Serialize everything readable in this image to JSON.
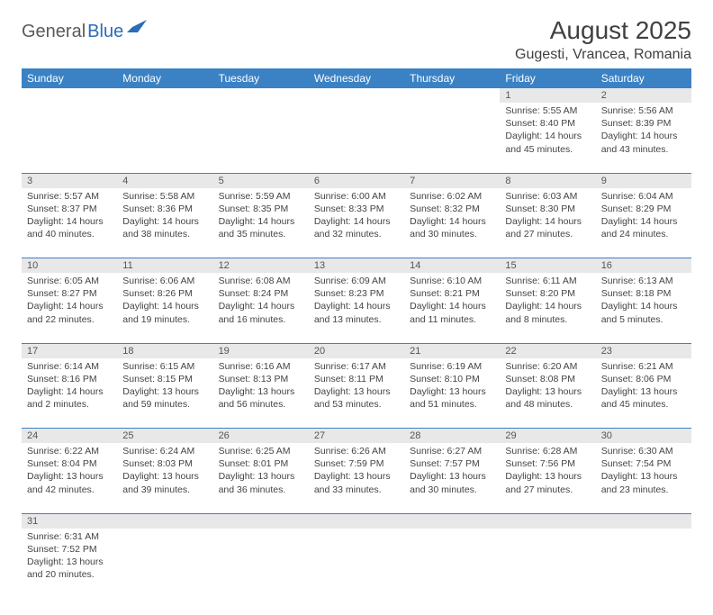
{
  "logo": {
    "text1": "General",
    "text2": "Blue"
  },
  "title": "August 2025",
  "location": "Gugesti, Vrancea, Romania",
  "colors": {
    "header_bg": "#3b82c4",
    "header_text": "#ffffff",
    "daynum_bg": "#e8e8e8",
    "border": "#3b82c4",
    "text": "#444444",
    "logo_gray": "#5a5a5a",
    "logo_blue": "#2a6db8"
  },
  "weekdays": [
    "Sunday",
    "Monday",
    "Tuesday",
    "Wednesday",
    "Thursday",
    "Friday",
    "Saturday"
  ],
  "weeks": [
    [
      null,
      null,
      null,
      null,
      null,
      {
        "n": "1",
        "sr": "Sunrise: 5:55 AM",
        "ss": "Sunset: 8:40 PM",
        "d1": "Daylight: 14 hours",
        "d2": "and 45 minutes."
      },
      {
        "n": "2",
        "sr": "Sunrise: 5:56 AM",
        "ss": "Sunset: 8:39 PM",
        "d1": "Daylight: 14 hours",
        "d2": "and 43 minutes."
      }
    ],
    [
      {
        "n": "3",
        "sr": "Sunrise: 5:57 AM",
        "ss": "Sunset: 8:37 PM",
        "d1": "Daylight: 14 hours",
        "d2": "and 40 minutes."
      },
      {
        "n": "4",
        "sr": "Sunrise: 5:58 AM",
        "ss": "Sunset: 8:36 PM",
        "d1": "Daylight: 14 hours",
        "d2": "and 38 minutes."
      },
      {
        "n": "5",
        "sr": "Sunrise: 5:59 AM",
        "ss": "Sunset: 8:35 PM",
        "d1": "Daylight: 14 hours",
        "d2": "and 35 minutes."
      },
      {
        "n": "6",
        "sr": "Sunrise: 6:00 AM",
        "ss": "Sunset: 8:33 PM",
        "d1": "Daylight: 14 hours",
        "d2": "and 32 minutes."
      },
      {
        "n": "7",
        "sr": "Sunrise: 6:02 AM",
        "ss": "Sunset: 8:32 PM",
        "d1": "Daylight: 14 hours",
        "d2": "and 30 minutes."
      },
      {
        "n": "8",
        "sr": "Sunrise: 6:03 AM",
        "ss": "Sunset: 8:30 PM",
        "d1": "Daylight: 14 hours",
        "d2": "and 27 minutes."
      },
      {
        "n": "9",
        "sr": "Sunrise: 6:04 AM",
        "ss": "Sunset: 8:29 PM",
        "d1": "Daylight: 14 hours",
        "d2": "and 24 minutes."
      }
    ],
    [
      {
        "n": "10",
        "sr": "Sunrise: 6:05 AM",
        "ss": "Sunset: 8:27 PM",
        "d1": "Daylight: 14 hours",
        "d2": "and 22 minutes."
      },
      {
        "n": "11",
        "sr": "Sunrise: 6:06 AM",
        "ss": "Sunset: 8:26 PM",
        "d1": "Daylight: 14 hours",
        "d2": "and 19 minutes."
      },
      {
        "n": "12",
        "sr": "Sunrise: 6:08 AM",
        "ss": "Sunset: 8:24 PM",
        "d1": "Daylight: 14 hours",
        "d2": "and 16 minutes."
      },
      {
        "n": "13",
        "sr": "Sunrise: 6:09 AM",
        "ss": "Sunset: 8:23 PM",
        "d1": "Daylight: 14 hours",
        "d2": "and 13 minutes."
      },
      {
        "n": "14",
        "sr": "Sunrise: 6:10 AM",
        "ss": "Sunset: 8:21 PM",
        "d1": "Daylight: 14 hours",
        "d2": "and 11 minutes."
      },
      {
        "n": "15",
        "sr": "Sunrise: 6:11 AM",
        "ss": "Sunset: 8:20 PM",
        "d1": "Daylight: 14 hours",
        "d2": "and 8 minutes."
      },
      {
        "n": "16",
        "sr": "Sunrise: 6:13 AM",
        "ss": "Sunset: 8:18 PM",
        "d1": "Daylight: 14 hours",
        "d2": "and 5 minutes."
      }
    ],
    [
      {
        "n": "17",
        "sr": "Sunrise: 6:14 AM",
        "ss": "Sunset: 8:16 PM",
        "d1": "Daylight: 14 hours",
        "d2": "and 2 minutes."
      },
      {
        "n": "18",
        "sr": "Sunrise: 6:15 AM",
        "ss": "Sunset: 8:15 PM",
        "d1": "Daylight: 13 hours",
        "d2": "and 59 minutes."
      },
      {
        "n": "19",
        "sr": "Sunrise: 6:16 AM",
        "ss": "Sunset: 8:13 PM",
        "d1": "Daylight: 13 hours",
        "d2": "and 56 minutes."
      },
      {
        "n": "20",
        "sr": "Sunrise: 6:17 AM",
        "ss": "Sunset: 8:11 PM",
        "d1": "Daylight: 13 hours",
        "d2": "and 53 minutes."
      },
      {
        "n": "21",
        "sr": "Sunrise: 6:19 AM",
        "ss": "Sunset: 8:10 PM",
        "d1": "Daylight: 13 hours",
        "d2": "and 51 minutes."
      },
      {
        "n": "22",
        "sr": "Sunrise: 6:20 AM",
        "ss": "Sunset: 8:08 PM",
        "d1": "Daylight: 13 hours",
        "d2": "and 48 minutes."
      },
      {
        "n": "23",
        "sr": "Sunrise: 6:21 AM",
        "ss": "Sunset: 8:06 PM",
        "d1": "Daylight: 13 hours",
        "d2": "and 45 minutes."
      }
    ],
    [
      {
        "n": "24",
        "sr": "Sunrise: 6:22 AM",
        "ss": "Sunset: 8:04 PM",
        "d1": "Daylight: 13 hours",
        "d2": "and 42 minutes."
      },
      {
        "n": "25",
        "sr": "Sunrise: 6:24 AM",
        "ss": "Sunset: 8:03 PM",
        "d1": "Daylight: 13 hours",
        "d2": "and 39 minutes."
      },
      {
        "n": "26",
        "sr": "Sunrise: 6:25 AM",
        "ss": "Sunset: 8:01 PM",
        "d1": "Daylight: 13 hours",
        "d2": "and 36 minutes."
      },
      {
        "n": "27",
        "sr": "Sunrise: 6:26 AM",
        "ss": "Sunset: 7:59 PM",
        "d1": "Daylight: 13 hours",
        "d2": "and 33 minutes."
      },
      {
        "n": "28",
        "sr": "Sunrise: 6:27 AM",
        "ss": "Sunset: 7:57 PM",
        "d1": "Daylight: 13 hours",
        "d2": "and 30 minutes."
      },
      {
        "n": "29",
        "sr": "Sunrise: 6:28 AM",
        "ss": "Sunset: 7:56 PM",
        "d1": "Daylight: 13 hours",
        "d2": "and 27 minutes."
      },
      {
        "n": "30",
        "sr": "Sunrise: 6:30 AM",
        "ss": "Sunset: 7:54 PM",
        "d1": "Daylight: 13 hours",
        "d2": "and 23 minutes."
      }
    ],
    [
      {
        "n": "31",
        "sr": "Sunrise: 6:31 AM",
        "ss": "Sunset: 7:52 PM",
        "d1": "Daylight: 13 hours",
        "d2": "and 20 minutes."
      },
      null,
      null,
      null,
      null,
      null,
      null
    ]
  ]
}
